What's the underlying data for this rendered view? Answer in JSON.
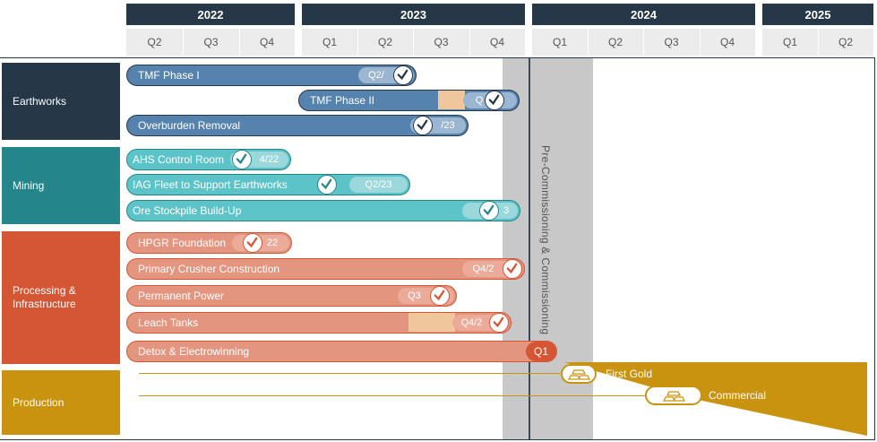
{
  "timeline": {
    "years": [
      {
        "label": "2022",
        "quarters": [
          "Q2",
          "Q3",
          "Q4"
        ]
      },
      {
        "label": "2023",
        "quarters": [
          "Q1",
          "Q2",
          "Q3",
          "Q4"
        ]
      },
      {
        "label": "2024",
        "quarters": [
          "Q1",
          "Q2",
          "Q3",
          "Q4"
        ]
      },
      {
        "label": "2025",
        "quarters": [
          "Q1",
          "Q2"
        ]
      }
    ],
    "vertical_band_label": "Pre-Commissioning & Commissioning"
  },
  "categories": [
    {
      "label": "Earthworks",
      "color": "#263747"
    },
    {
      "label": "Mining",
      "color": "#24868a"
    },
    {
      "label": "Processing & Infrastructure",
      "color": "#d55634"
    },
    {
      "label": "Production",
      "color": "#c9930f"
    }
  ],
  "tasks": [
    {
      "label": "TMF Phase I",
      "target": "Q2/",
      "status": "complete"
    },
    {
      "label": "TMF Phase II",
      "target": "Q",
      "status": "complete"
    },
    {
      "label": "Overburden Removal",
      "target": "/23",
      "status": "complete"
    },
    {
      "label": "AHS Control Room",
      "target": "4/22",
      "status": "complete"
    },
    {
      "label": "IAG Fleet to Support Earthworks",
      "target": "Q2/23",
      "status": "complete"
    },
    {
      "label": "Ore Stockpile Build-Up",
      "target": "3",
      "status": "complete"
    },
    {
      "label": "HPGR Foundation",
      "target": "22",
      "status": "complete"
    },
    {
      "label": "Primary Crusher Construction",
      "target": "Q4/2",
      "status": "complete"
    },
    {
      "label": "Permanent Power",
      "target": "Q3",
      "status": "complete"
    },
    {
      "label": "Leach Tanks",
      "target": "Q4/2",
      "status": "complete"
    },
    {
      "label": "Detox & Electrowinning",
      "target": "Q1",
      "status": "in-progress"
    }
  ],
  "milestones": [
    {
      "label": "First Gold",
      "icon": "gold-bars-icon"
    },
    {
      "label": "Commercial",
      "icon": "gold-bars-icon"
    }
  ],
  "colors": {
    "earthworks_bar": "#5583ad",
    "mining_bar": "#5cc4c8",
    "processing_bar": "#e49580",
    "processing_dark": "#d55634",
    "production": "#c9930f",
    "header": "#263747",
    "band": "#c8c8c8",
    "delay": "#f0c79c"
  }
}
